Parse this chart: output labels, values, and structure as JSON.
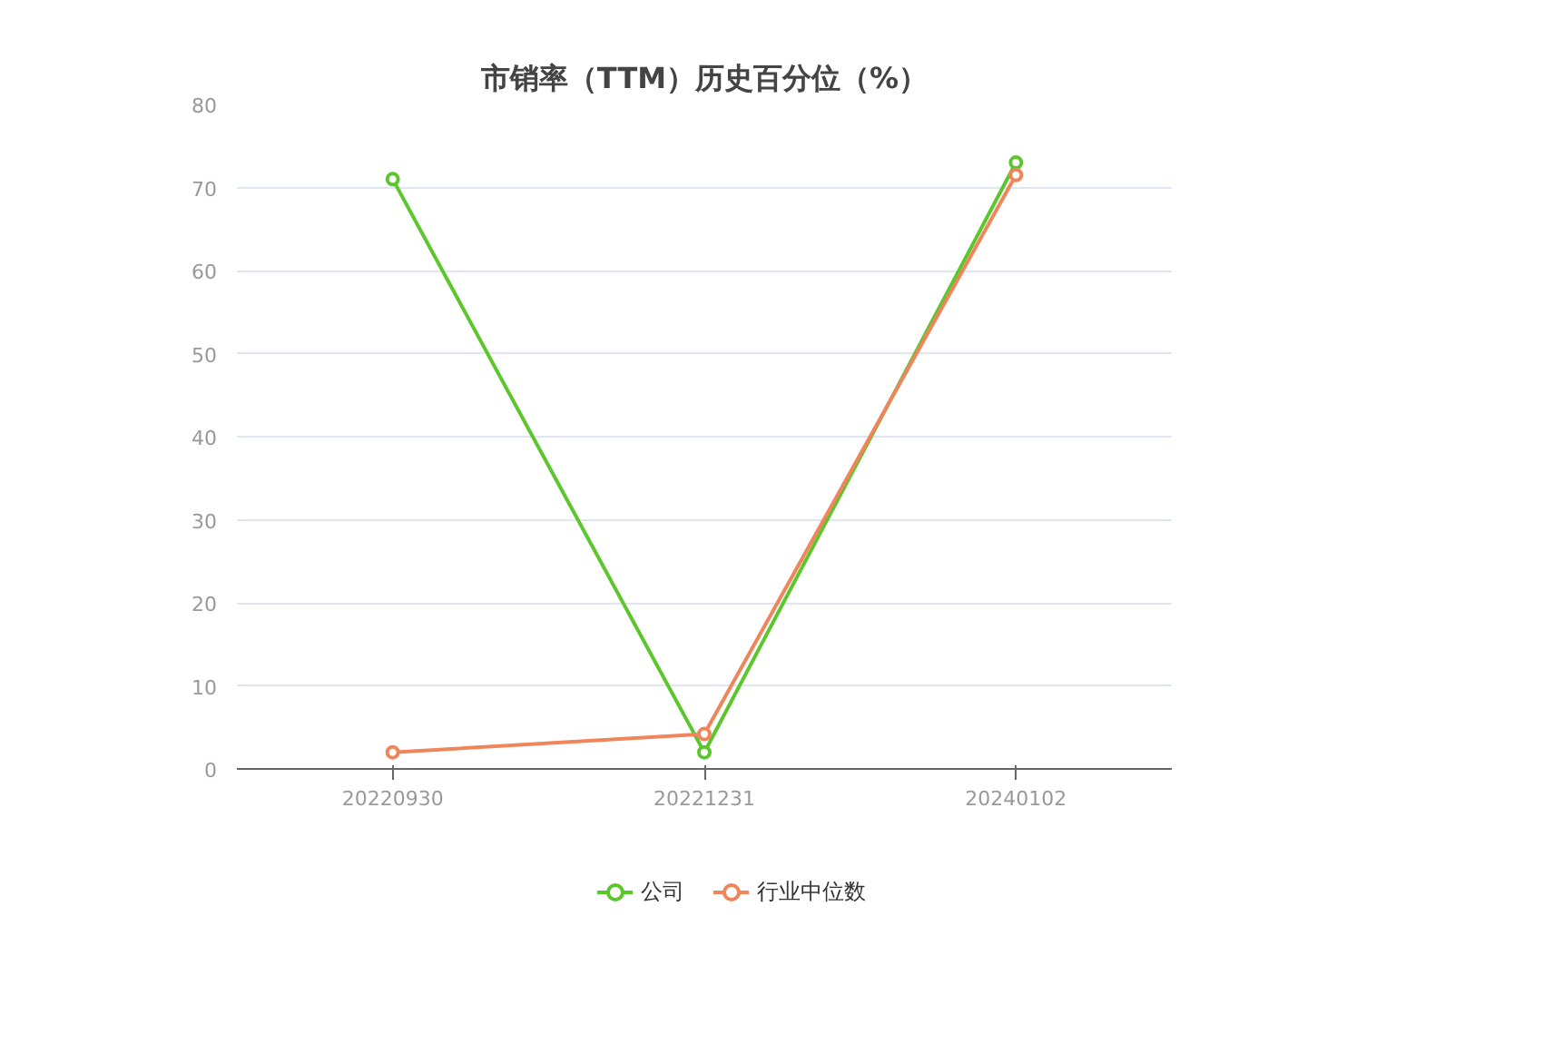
{
  "chart_data": {
    "type": "line",
    "title": "市销率（TTM）历史百分位（%）",
    "categories": [
      "20220930",
      "20221231",
      "20240102"
    ],
    "series": [
      {
        "name": "公司",
        "color": "#5cc72c",
        "values": [
          71,
          2,
          73
        ]
      },
      {
        "name": "行业中位数",
        "color": "#f0845a",
        "values": [
          2,
          4.2,
          71.5
        ]
      }
    ],
    "ylim": [
      0,
      80
    ],
    "yticks": [
      0,
      10,
      20,
      30,
      40,
      50,
      60,
      70,
      80
    ],
    "grid": "y",
    "legend": "bottom",
    "marker": "circle",
    "line_style": "solid"
  }
}
